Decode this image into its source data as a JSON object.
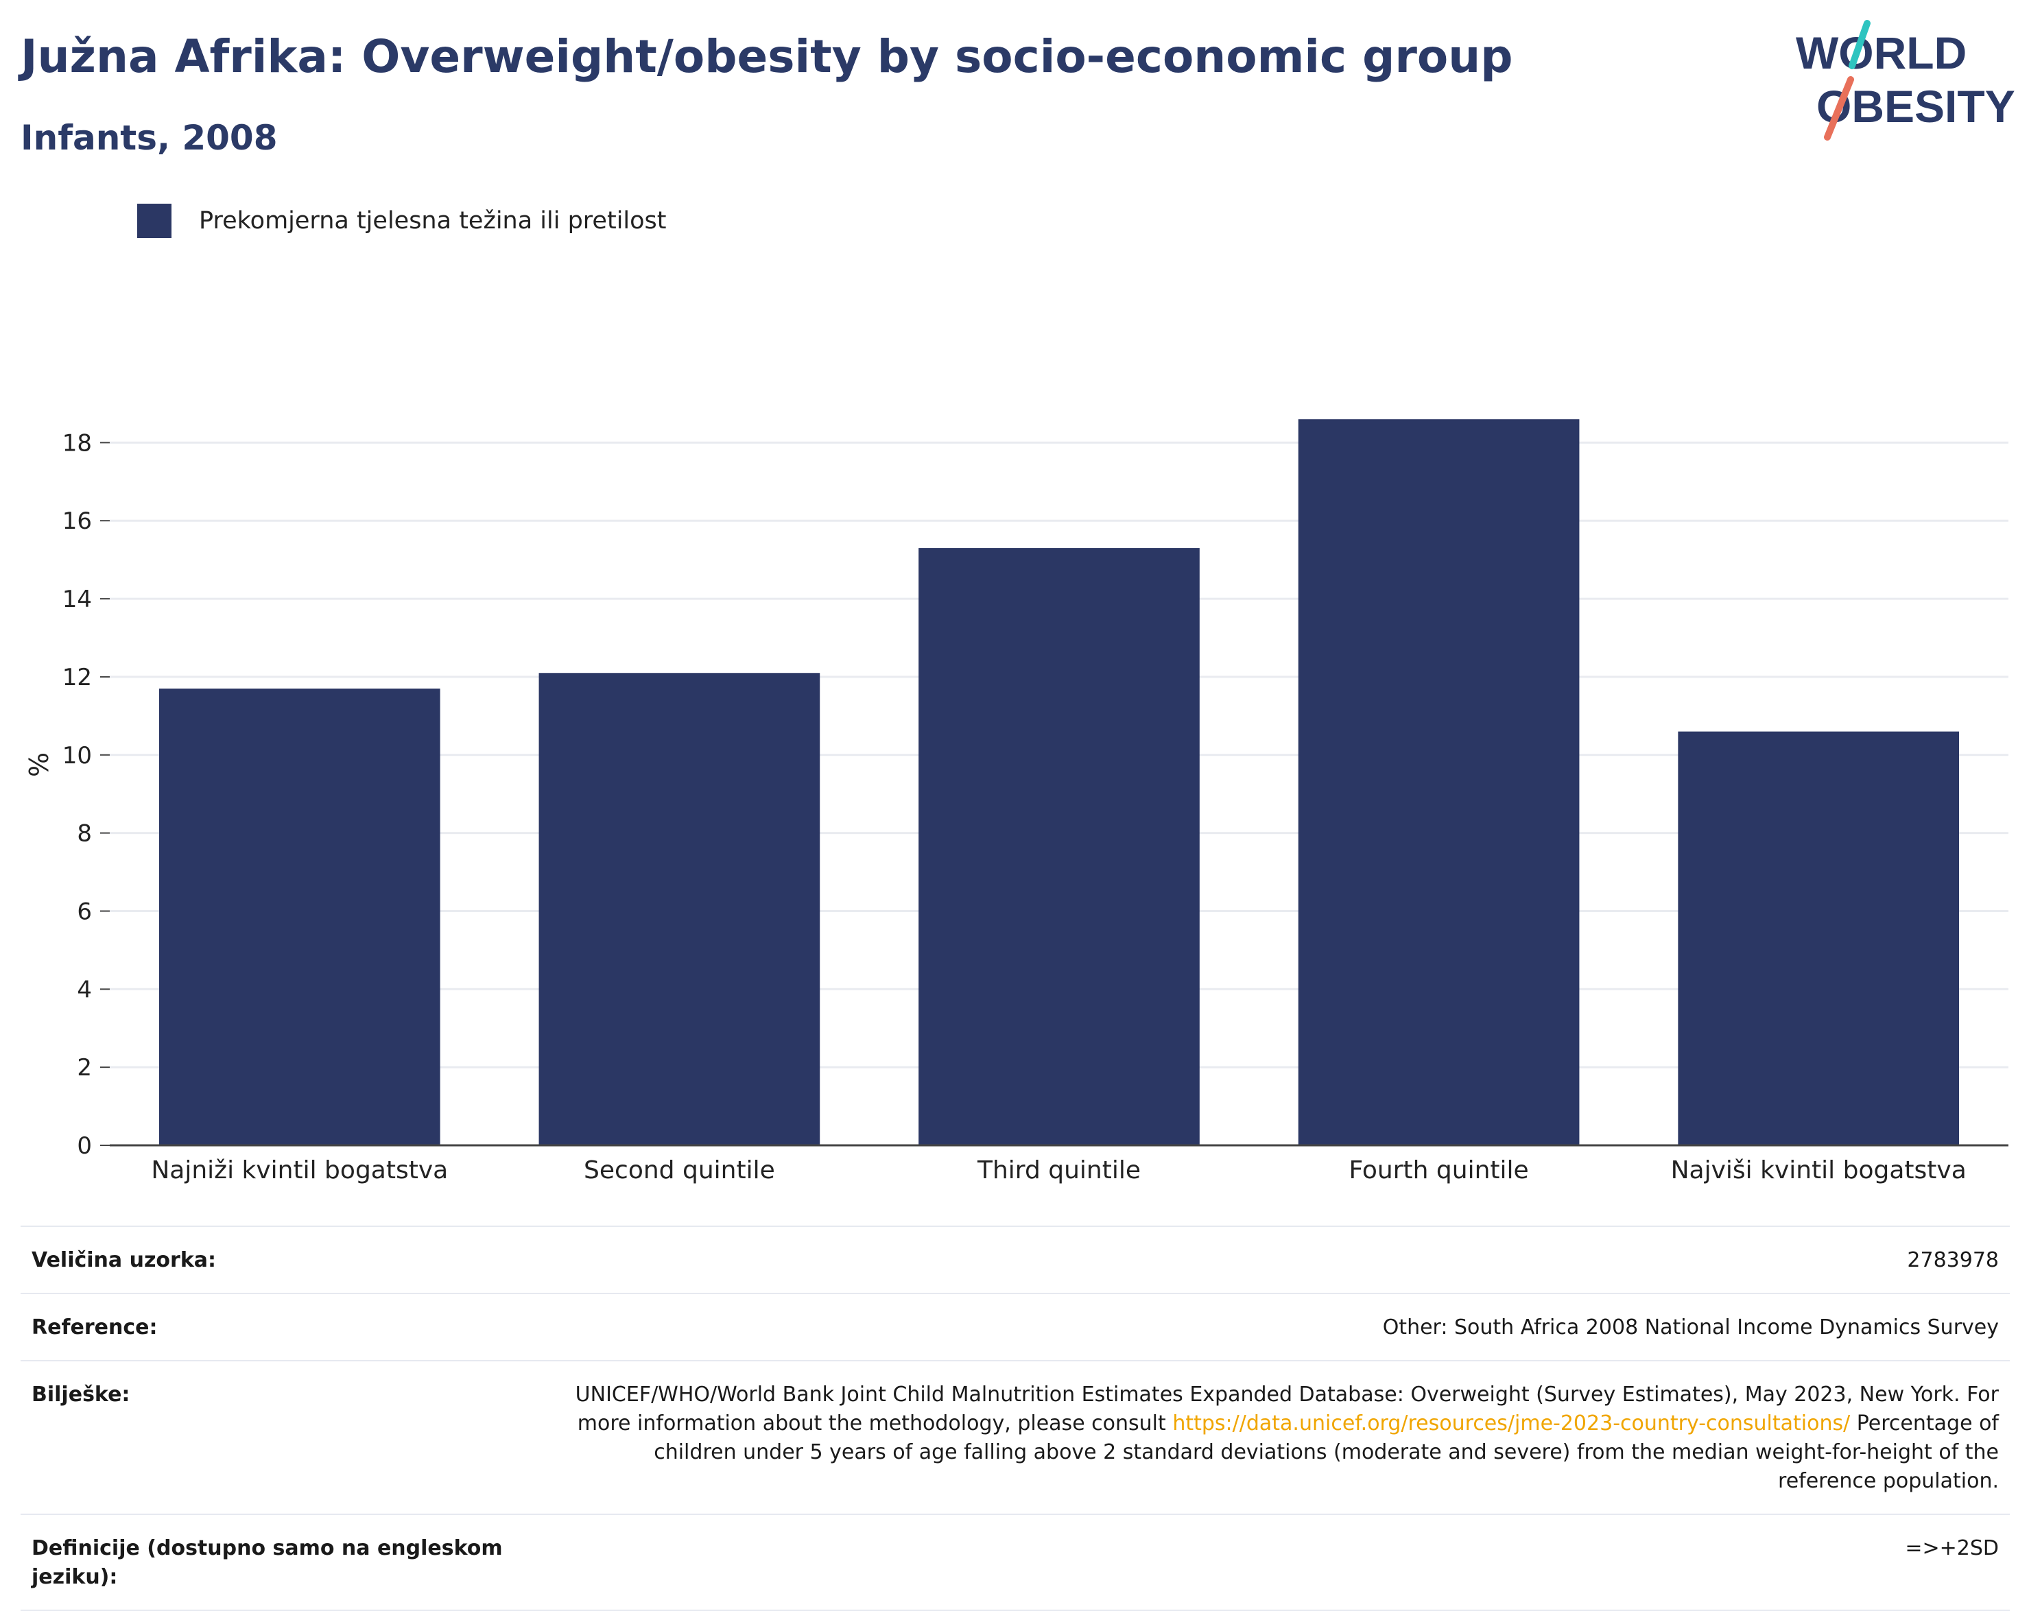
{
  "header": {
    "title": "Južna Afrika: Overweight/obesity by socio-economic group",
    "subtitle": "Infants, 2008"
  },
  "logo": {
    "line1": "WORLD",
    "line2": "OBESITY"
  },
  "legend": {
    "label": "Prekomjerna tjelesna težina ili pretilost",
    "color": "#2b3764"
  },
  "chart_data": {
    "type": "bar",
    "categories": [
      "Najniži kvintil bogatstva",
      "Second quintile",
      "Third quintile",
      "Fourth quintile",
      "Najviši kvintil bogatstva"
    ],
    "series": [
      {
        "name": "Prekomjerna tjelesna težina ili pretilost",
        "values": [
          11.7,
          12.1,
          15.3,
          18.6,
          10.6
        ]
      }
    ],
    "ylabel": "%",
    "ylim": [
      0,
      19.5
    ],
    "yticks": [
      0,
      2,
      4,
      6,
      8,
      10,
      12,
      14,
      16,
      18
    ],
    "grid": true,
    "bar_color": "#2b3764"
  },
  "meta": {
    "sample_size_label": "Veličina uzorka:",
    "sample_size_value": "2783978",
    "reference_label": "Reference:",
    "reference_value": "Other: South Africa 2008 National Income Dynamics Survey",
    "notes_label": "Bilješke:",
    "notes_text_1": "UNICEF/WHO/World Bank Joint Child Malnutrition Estimates Expanded Database: Overweight (Survey Estimates), May 2023, New York. For more information about the methodology, please consult ",
    "notes_link": "https://data.unicef.org/resources/jme-2023-country-consultations/",
    "notes_text_2": " Percentage of children under 5 years of age falling above 2 standard deviations (moderate and severe) from the median weight-for-height of the reference population.",
    "definitions_label": "Definicije (dostupno samo na engleskom jeziku):",
    "definitions_value": "=>+2SD"
  }
}
